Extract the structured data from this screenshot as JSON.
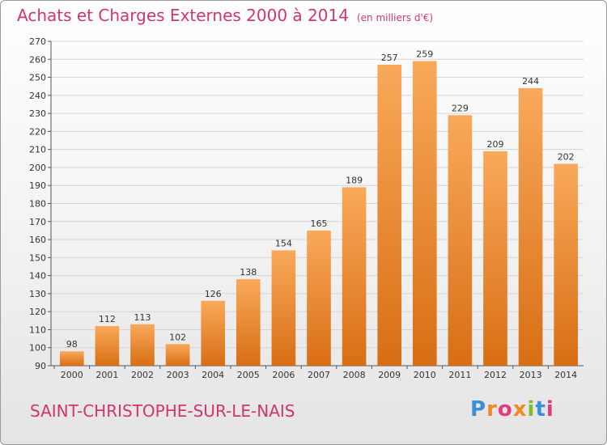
{
  "header": {
    "title": "Achats et Charges Externes 2000 à 2014",
    "unit": "(en milliers d'€)"
  },
  "footer": {
    "commune": "SAINT-CHRISTOPHE-SUR-LE-NAIS",
    "logo_letters": [
      "P",
      "r",
      "o",
      "x",
      "i",
      "t",
      "i"
    ],
    "logo_colors": [
      "#3a8fd8",
      "#f08a1c",
      "#e43b7a",
      "#f08a1c",
      "#7cbf2a",
      "#3a8fd8",
      "#e43b7a"
    ]
  },
  "colors": {
    "bar_top": "#f9a95a",
    "bar_bottom": "#d86e14",
    "accent": "#d0356d"
  },
  "chart_data": {
    "type": "bar",
    "title": "Achats et Charges Externes 2000 à 2014",
    "subtitle": "(en milliers d'€)",
    "xlabel": "",
    "ylabel": "",
    "categories": [
      "2000",
      "2001",
      "2002",
      "2003",
      "2004",
      "2005",
      "2006",
      "2007",
      "2008",
      "2009",
      "2010",
      "2011",
      "2012",
      "2013",
      "2014"
    ],
    "values": [
      98,
      112,
      113,
      102,
      126,
      138,
      154,
      165,
      189,
      257,
      259,
      229,
      209,
      244,
      202
    ],
    "ylim": [
      90,
      270
    ],
    "yticks": [
      90,
      100,
      110,
      120,
      130,
      140,
      150,
      160,
      170,
      180,
      190,
      200,
      210,
      220,
      230,
      240,
      250,
      260,
      270
    ],
    "grid": true
  }
}
